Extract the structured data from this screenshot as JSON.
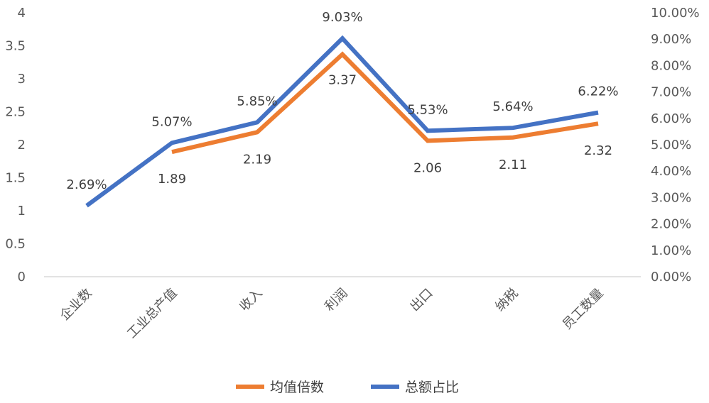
{
  "chart_data": {
    "type": "line",
    "categories": [
      "企业数",
      "工业总产值",
      "收入",
      "利润",
      "出口",
      "纳税",
      "员工数量"
    ],
    "series": [
      {
        "name": "均值倍数",
        "axis": "left",
        "color": "#ED7D31",
        "values": [
          null,
          1.89,
          2.19,
          3.37,
          2.06,
          2.11,
          2.32
        ],
        "labels": [
          "",
          "1.89",
          "2.19",
          "3.37",
          "2.06",
          "2.11",
          "2.32"
        ]
      },
      {
        "name": "总额占比",
        "axis": "right",
        "color": "#4472C4",
        "values": [
          2.69,
          5.07,
          5.85,
          9.03,
          5.53,
          5.64,
          6.22
        ],
        "labels": [
          "2.69%",
          "5.07%",
          "5.85%",
          "9.03%",
          "5.53%",
          "5.64%",
          "6.22%"
        ]
      }
    ],
    "y_left": {
      "ylim": [
        0,
        4
      ],
      "ticks": [
        "0",
        "0.5",
        "1",
        "1.5",
        "2",
        "2.5",
        "3",
        "3.5",
        "4"
      ]
    },
    "y_right": {
      "ylim": [
        0,
        10
      ],
      "unit": "%",
      "ticks": [
        "0.00%",
        "1.00%",
        "2.00%",
        "3.00%",
        "4.00%",
        "5.00%",
        "6.00%",
        "7.00%",
        "8.00%",
        "9.00%",
        "10.00%"
      ]
    },
    "grid": false,
    "legend_position": "bottom"
  }
}
